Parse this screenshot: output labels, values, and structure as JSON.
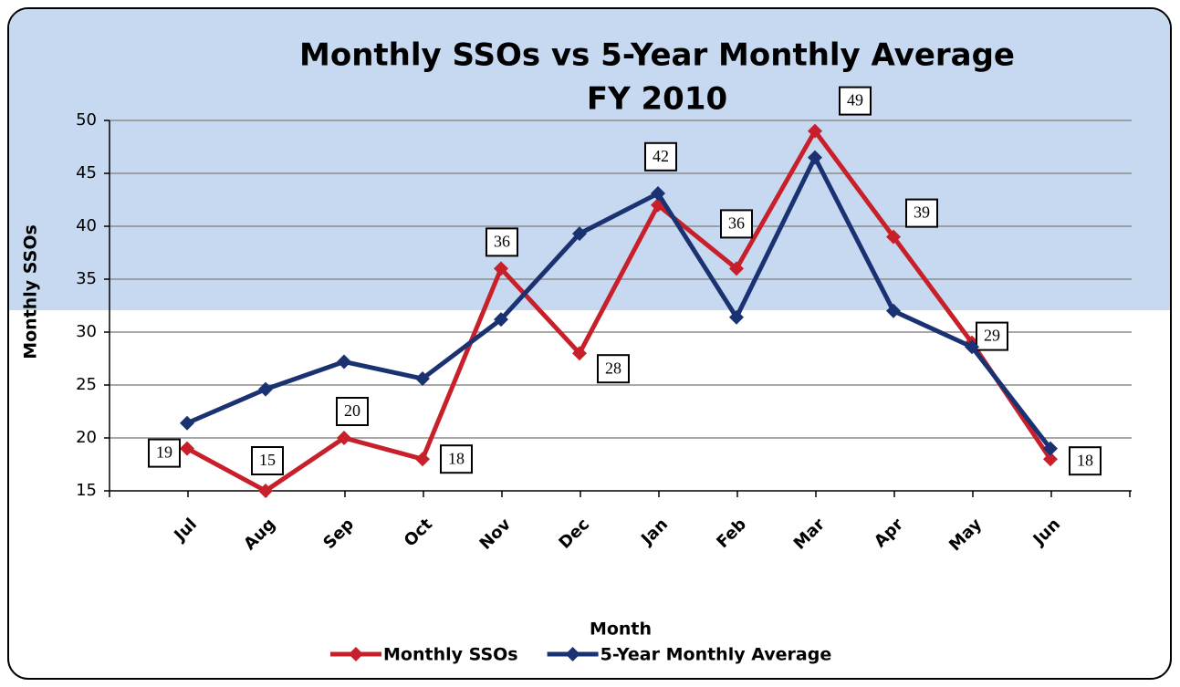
{
  "chart_data": {
    "type": "line",
    "title": "Monthly SSOs vs 5-Year Monthly Average",
    "subtitle": "FY 2010",
    "x_label": "Month",
    "y_label": "Monthly SSOs",
    "categories": [
      "Jul",
      "Aug",
      "Sep",
      "Oct",
      "Nov",
      "Dec",
      "Jan",
      "Feb",
      "Mar",
      "Apr",
      "May",
      "Jun"
    ],
    "series": [
      {
        "name": "Monthly SSOs",
        "color": "#c8202a",
        "values": [
          19,
          15,
          20,
          18,
          36,
          28,
          42,
          36,
          49,
          39,
          29,
          18
        ],
        "data_labels": true
      },
      {
        "name": "5-Year Monthly Average",
        "color": "#1b3272",
        "values": [
          21.4,
          24.6,
          27.2,
          25.6,
          31.2,
          39.3,
          43.1,
          31.4,
          46.5,
          32,
          28.6,
          19
        ]
      }
    ],
    "ylim": [
      15,
      50
    ],
    "yticks": [
      15,
      20,
      25,
      30,
      35,
      40,
      45,
      50
    ],
    "grid": true,
    "legend": "bottom"
  }
}
